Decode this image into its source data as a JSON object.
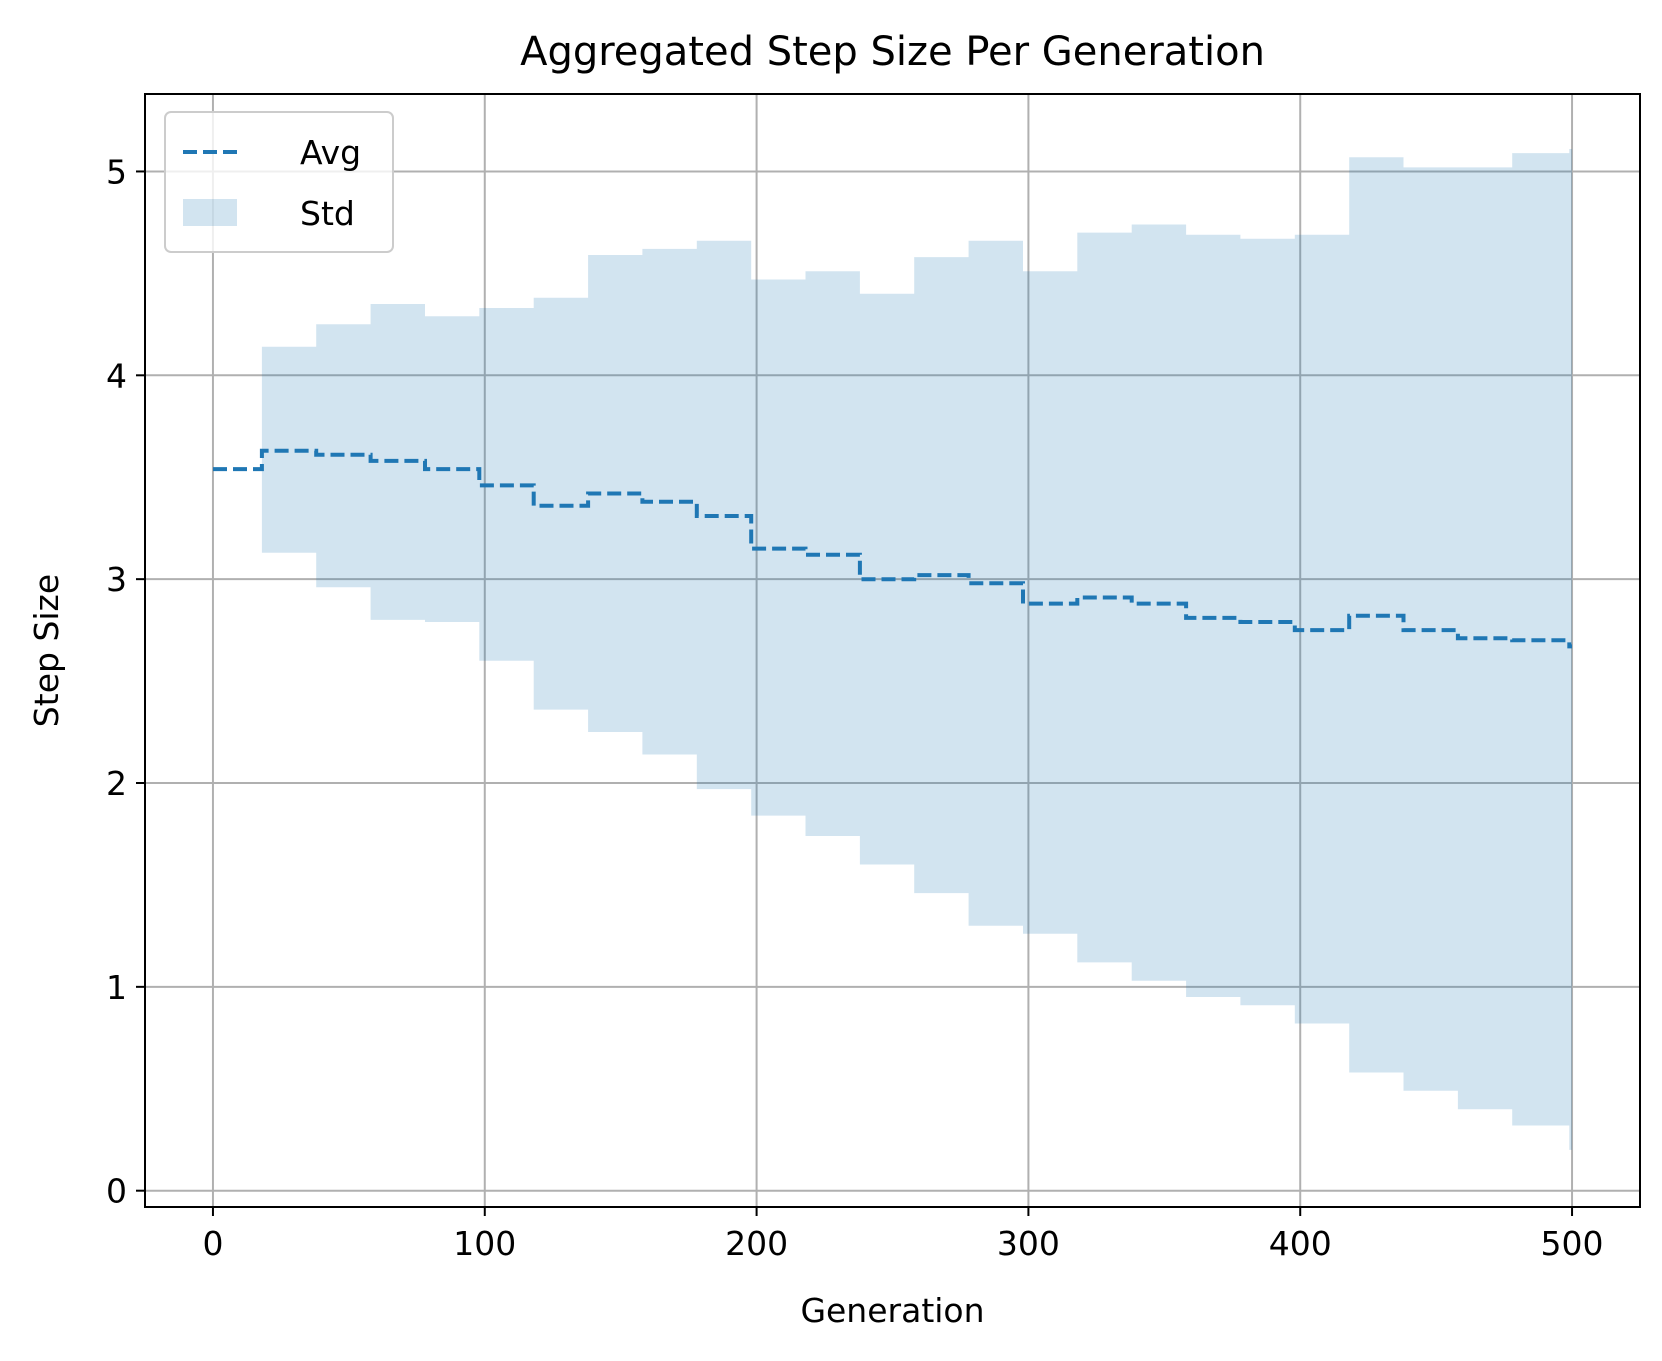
{
  "chart_data": {
    "type": "line",
    "title": "Aggregated Step Size Per Generation",
    "xlabel": "Generation",
    "ylabel": "Step Size",
    "xlim": [
      -25,
      525
    ],
    "ylim": [
      -0.08,
      5.38
    ],
    "xticks": [
      0,
      100,
      200,
      300,
      400,
      500
    ],
    "yticks": [
      0,
      1,
      2,
      3,
      4,
      5
    ],
    "xtick_labels": [
      "0",
      "100",
      "200",
      "300",
      "400",
      "500"
    ],
    "ytick_labels": [
      "0",
      "1",
      "2",
      "3",
      "4",
      "5"
    ],
    "grid": true,
    "legend_position": "top-left",
    "legend": [
      {
        "label": "Avg",
        "kind": "dashed-line"
      },
      {
        "label": "Std",
        "kind": "filled-area"
      }
    ],
    "colors": {
      "avg_line": "#1f77b4",
      "std_fill": "#1f77b4",
      "std_fill_opacity": 0.2,
      "grid": "#b0b0b0"
    },
    "series": [
      {
        "name": "Avg",
        "style": "dashed",
        "step_starts": [
          0,
          18,
          38,
          58,
          78,
          98,
          118,
          138,
          158,
          178,
          198,
          218,
          238,
          258,
          278,
          298,
          318,
          338,
          358,
          378,
          398,
          418,
          438,
          458,
          478,
          499
        ],
        "step_ends": [
          18,
          38,
          58,
          78,
          98,
          118,
          138,
          158,
          178,
          198,
          218,
          238,
          258,
          278,
          298,
          318,
          338,
          358,
          378,
          398,
          418,
          438,
          458,
          478,
          499,
          500
        ],
        "values": [
          3.54,
          3.63,
          3.61,
          3.58,
          3.54,
          3.46,
          3.36,
          3.42,
          3.38,
          3.31,
          3.15,
          3.12,
          3.0,
          3.02,
          2.98,
          2.88,
          2.91,
          2.88,
          2.81,
          2.79,
          2.75,
          2.82,
          2.75,
          2.71,
          2.7,
          2.67
        ]
      },
      {
        "name": "Std",
        "style": "band",
        "step_starts": [
          0,
          18,
          38,
          58,
          78,
          98,
          118,
          138,
          158,
          178,
          198,
          218,
          238,
          258,
          278,
          298,
          318,
          338,
          358,
          378,
          398,
          418,
          438,
          458,
          478,
          499
        ],
        "step_ends": [
          18,
          38,
          58,
          78,
          98,
          118,
          138,
          158,
          178,
          198,
          218,
          238,
          258,
          278,
          298,
          318,
          338,
          358,
          378,
          398,
          418,
          438,
          458,
          478,
          499,
          500
        ],
        "upper": [
          3.54,
          4.14,
          4.25,
          4.35,
          4.29,
          4.33,
          4.38,
          4.59,
          4.62,
          4.66,
          4.47,
          4.51,
          4.4,
          4.58,
          4.66,
          4.51,
          4.7,
          4.74,
          4.69,
          4.67,
          4.69,
          5.07,
          5.02,
          5.02,
          5.09,
          5.11
        ],
        "lower": [
          3.54,
          3.13,
          2.96,
          2.8,
          2.79,
          2.6,
          2.36,
          2.25,
          2.14,
          1.97,
          1.84,
          1.74,
          1.6,
          1.46,
          1.3,
          1.26,
          1.12,
          1.03,
          0.95,
          0.91,
          0.82,
          0.58,
          0.49,
          0.4,
          0.32,
          0.2
        ]
      }
    ]
  }
}
